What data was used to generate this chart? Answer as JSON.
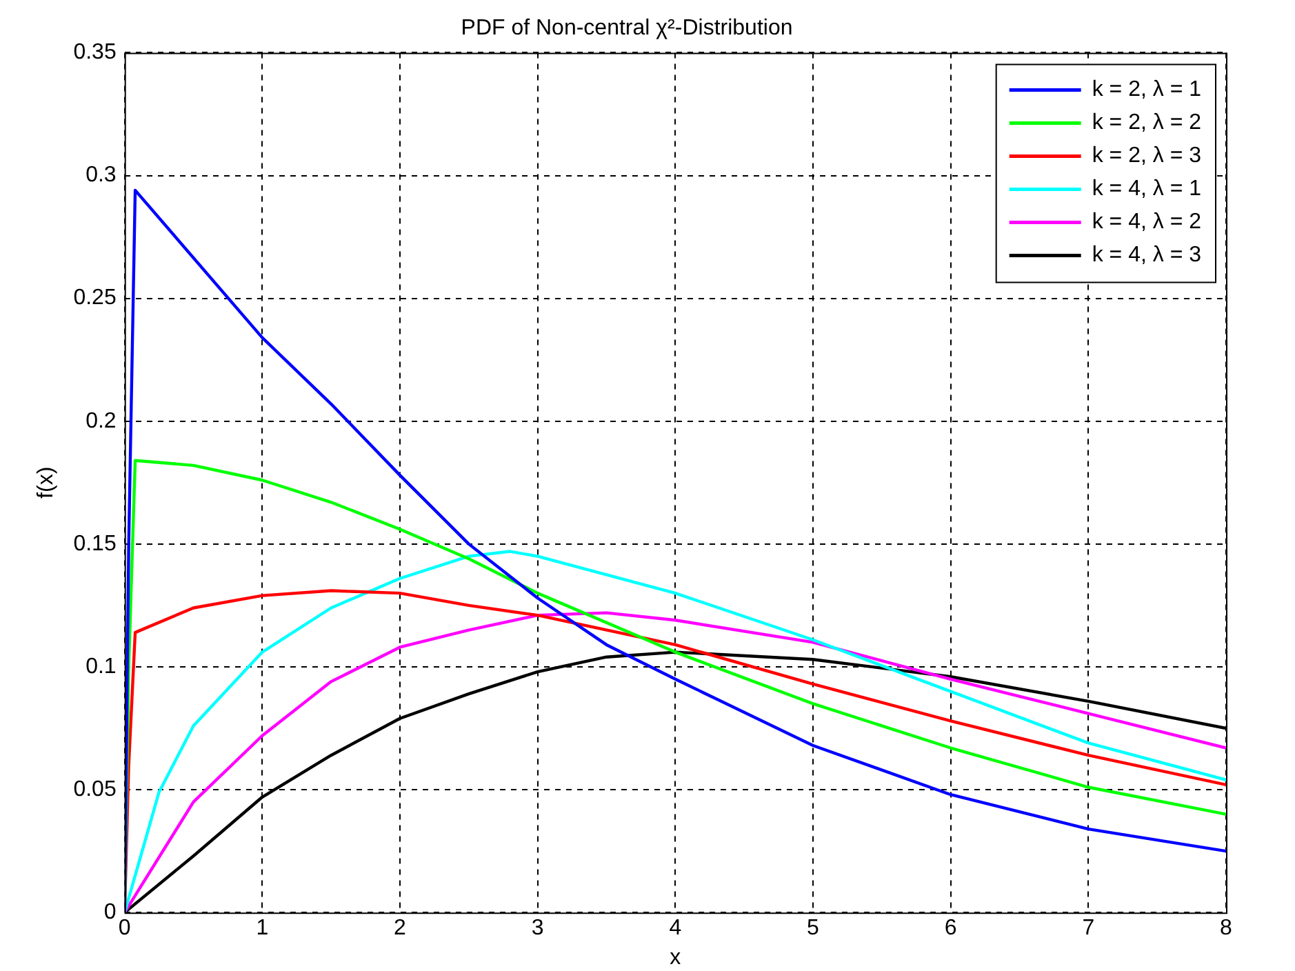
{
  "chart_data": {
    "type": "line",
    "title": "PDF of Non-central χ²-Distribution",
    "xlabel": "x",
    "ylabel": "f(x)",
    "xlim": [
      0,
      8
    ],
    "xticks": [
      0,
      1,
      2,
      3,
      4,
      5,
      6,
      7,
      8
    ],
    "ylim": [
      0,
      0.35
    ],
    "yticks": [
      0,
      0.05,
      0.1,
      0.15,
      0.2,
      0.25,
      0.3,
      0.35
    ],
    "grid": true,
    "legend": "top right",
    "marker": "none",
    "line_style": "solid",
    "series": [
      {
        "name": "k = 2, λ = 1",
        "color": "#0000ff",
        "x": [
          0,
          0.03,
          0.077,
          1,
          1.5,
          2,
          2.5,
          3,
          3.5,
          4,
          5,
          6,
          7,
          8
        ],
        "values": [
          0,
          0.15,
          0.294,
          0.234,
          0.207,
          0.178,
          0.15,
          0.128,
          0.109,
          0.095,
          0.068,
          0.048,
          0.034,
          0.025
        ]
      },
      {
        "name": "k = 2, λ = 2",
        "color": "#00ff00",
        "x": [
          0,
          0.03,
          0.077,
          0.5,
          1,
          1.5,
          2,
          2.5,
          3,
          4,
          5,
          6,
          7,
          8
        ],
        "values": [
          0,
          0.1,
          0.184,
          0.182,
          0.176,
          0.167,
          0.156,
          0.144,
          0.13,
          0.106,
          0.085,
          0.067,
          0.051,
          0.04
        ]
      },
      {
        "name": "k = 2, λ = 3",
        "color": "#ff0000",
        "x": [
          0,
          0.03,
          0.077,
          0.5,
          1,
          1.5,
          2,
          2.5,
          3,
          4,
          5,
          6,
          7,
          8
        ],
        "values": [
          0,
          0.06,
          0.114,
          0.124,
          0.129,
          0.131,
          0.13,
          0.125,
          0.121,
          0.109,
          0.093,
          0.078,
          0.064,
          0.052
        ]
      },
      {
        "name": "k = 4, λ = 1",
        "color": "#00ffff",
        "x": [
          0,
          0.25,
          0.5,
          1,
          1.5,
          2,
          2.5,
          2.8,
          3,
          4,
          5,
          6,
          7,
          8
        ],
        "values": [
          0,
          0.049,
          0.076,
          0.106,
          0.124,
          0.136,
          0.145,
          0.147,
          0.145,
          0.13,
          0.111,
          0.09,
          0.069,
          0.054
        ]
      },
      {
        "name": "k = 4, λ = 2",
        "color": "#ff00ff",
        "x": [
          0,
          0.5,
          1,
          1.5,
          2,
          2.5,
          3,
          3.5,
          4,
          5,
          6,
          7,
          8
        ],
        "values": [
          0,
          0.045,
          0.072,
          0.094,
          0.108,
          0.115,
          0.121,
          0.122,
          0.119,
          0.11,
          0.095,
          0.081,
          0.067
        ]
      },
      {
        "name": "k = 4, λ = 3",
        "color": "#000000",
        "x": [
          0,
          0.5,
          1,
          1.5,
          2,
          2.5,
          3,
          3.5,
          4,
          5,
          6,
          7,
          8
        ],
        "values": [
          0,
          0.023,
          0.047,
          0.064,
          0.079,
          0.089,
          0.098,
          0.104,
          0.106,
          0.103,
          0.096,
          0.086,
          0.075
        ]
      }
    ]
  }
}
